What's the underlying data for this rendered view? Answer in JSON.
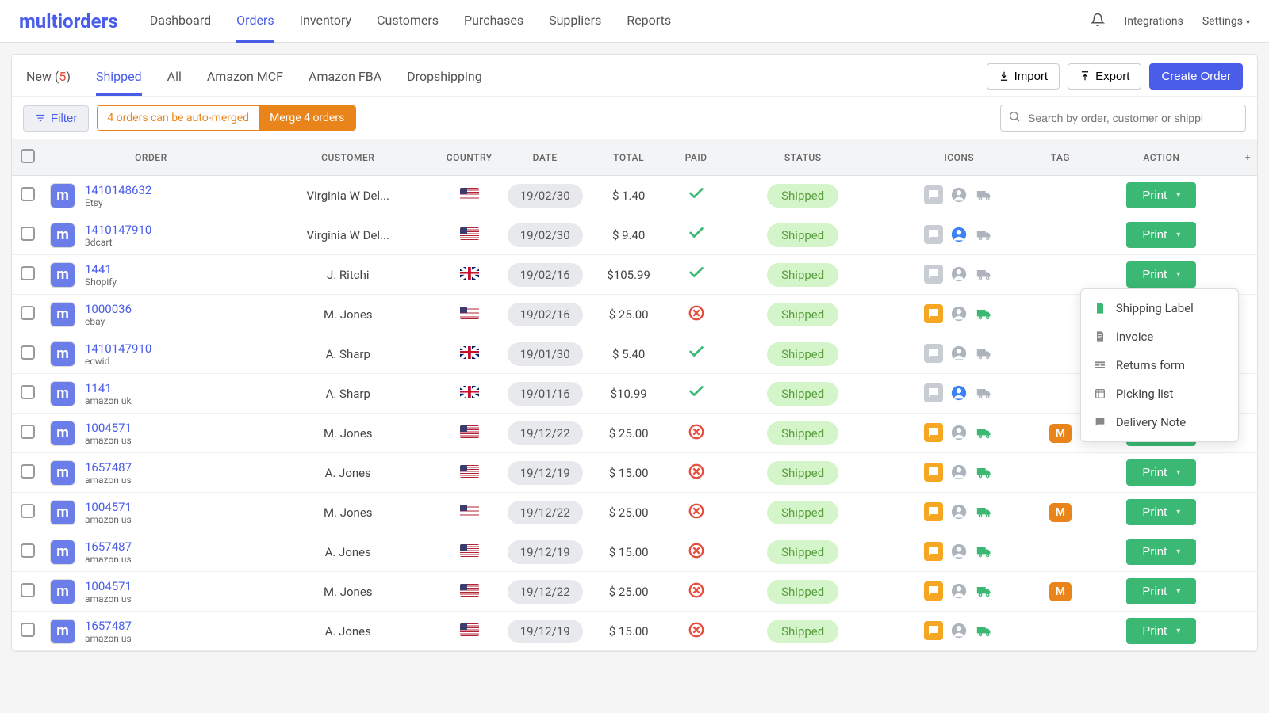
{
  "brand": "multiorders",
  "nav": [
    "Dashboard",
    "Orders",
    "Inventory",
    "Customers",
    "Purchases",
    "Suppliers",
    "Reports"
  ],
  "nav_active": 1,
  "topbar_right": {
    "integrations": "Integrations",
    "settings": "Settings"
  },
  "tabs": [
    {
      "label": "New",
      "count": "5"
    },
    {
      "label": "Shipped"
    },
    {
      "label": "All"
    },
    {
      "label": "Amazon MCF"
    },
    {
      "label": "Amazon FBA"
    },
    {
      "label": "Dropshipping"
    }
  ],
  "tabs_active": 1,
  "buttons": {
    "import": "Import",
    "export": "Export",
    "create": "Create Order",
    "filter": "Filter"
  },
  "merge": {
    "info": "4 orders can be auto-merged",
    "action": "Merge 4 orders"
  },
  "search_placeholder": "Search by order, customer or shippi",
  "columns": [
    "ORDER",
    "CUSTOMER",
    "COUNTRY",
    "DATE",
    "TOTAL",
    "PAID",
    "STATUS",
    "ICONS",
    "TAG",
    "ACTION"
  ],
  "print_label": "Print",
  "dropdown": [
    "Shipping Label",
    "Invoice",
    "Returns form",
    "Picking list",
    "Delivery Note"
  ],
  "dropdown_row": 2,
  "rows": [
    {
      "id": "1410148632",
      "src": "Etsy",
      "customer": "Virginia W Del...",
      "country": "us",
      "date": "19/02/30",
      "total": "$ 1.40",
      "paid": true,
      "status": "Shipped",
      "comment": "gray",
      "person": "gray",
      "truck": "gray",
      "tag": null
    },
    {
      "id": "1410147910",
      "src": "3dcart",
      "customer": "Virginia W Del...",
      "country": "us",
      "date": "19/02/30",
      "total": "$ 9.40",
      "paid": true,
      "status": "Shipped",
      "comment": "gray",
      "person": "blue",
      "truck": "gray",
      "tag": null
    },
    {
      "id": "1441",
      "src": "Shopify",
      "customer": "J. Ritchi",
      "country": "uk",
      "date": "19/02/16",
      "total": "$105.99",
      "paid": true,
      "status": "Shipped",
      "comment": "gray",
      "person": "gray",
      "truck": "gray",
      "tag": null
    },
    {
      "id": "1000036",
      "src": "ebay",
      "customer": "M.  Jones",
      "country": "us",
      "date": "19/02/16",
      "total": "$ 25.00",
      "paid": false,
      "status": "Shipped",
      "comment": "orange",
      "person": "gray",
      "truck": "green",
      "tag": null
    },
    {
      "id": "1410147910",
      "src": "ecwid",
      "customer": "A. Sharp",
      "country": "uk",
      "date": "19/01/30",
      "total": "$ 5.40",
      "paid": true,
      "status": "Shipped",
      "comment": "gray",
      "person": "gray",
      "truck": "gray",
      "tag": null
    },
    {
      "id": "1141",
      "src": "amazon uk",
      "customer": "A. Sharp",
      "country": "uk",
      "date": "19/01/16",
      "total": "$10.99",
      "paid": true,
      "status": "Shipped",
      "comment": "gray",
      "person": "blue",
      "truck": "gray",
      "tag": null
    },
    {
      "id": "1004571",
      "src": "amazon us",
      "customer": "M.  Jones",
      "country": "us",
      "date": "19/12/22",
      "total": "$ 25.00",
      "paid": false,
      "status": "Shipped",
      "comment": "orange",
      "person": "gray",
      "truck": "green",
      "tag": "M"
    },
    {
      "id": "1657487",
      "src": "amazon us",
      "customer": "A. Jones",
      "country": "us",
      "date": "19/12/19",
      "total": "$ 15.00",
      "paid": false,
      "status": "Shipped",
      "comment": "orange",
      "person": "gray",
      "truck": "green",
      "tag": null
    },
    {
      "id": "1004571",
      "src": "amazon us",
      "customer": "M.  Jones",
      "country": "us",
      "date": "19/12/22",
      "total": "$ 25.00",
      "paid": false,
      "status": "Shipped",
      "comment": "orange",
      "person": "gray",
      "truck": "green",
      "tag": "M"
    },
    {
      "id": "1657487",
      "src": "amazon us",
      "customer": "A. Jones",
      "country": "us",
      "date": "19/12/19",
      "total": "$ 15.00",
      "paid": false,
      "status": "Shipped",
      "comment": "orange",
      "person": "gray",
      "truck": "green",
      "tag": null
    },
    {
      "id": "1004571",
      "src": "amazon us",
      "customer": "M.  Jones",
      "country": "us",
      "date": "19/12/22",
      "total": "$ 25.00",
      "paid": false,
      "status": "Shipped",
      "comment": "orange",
      "person": "gray",
      "truck": "green",
      "tag": "M"
    },
    {
      "id": "1657487",
      "src": "amazon us",
      "customer": "A. Jones",
      "country": "us",
      "date": "19/12/19",
      "total": "$ 15.00",
      "paid": false,
      "status": "Shipped",
      "comment": "orange",
      "person": "gray",
      "truck": "green",
      "tag": null
    }
  ]
}
